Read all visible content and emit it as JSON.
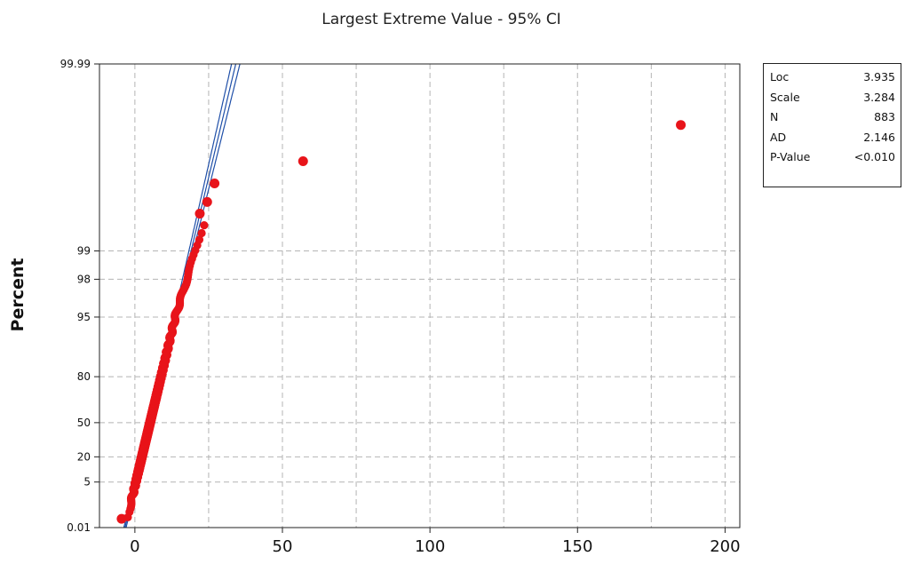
{
  "chart_data": {
    "type": "scatter",
    "title": "Largest Extreme Value - 95% CI",
    "xlabel": "",
    "ylabel": "Percent",
    "xlim": [
      -12,
      205
    ],
    "xticks": [
      0,
      50,
      100,
      150,
      200
    ],
    "xtick_labels": [
      "0",
      "50",
      "100",
      "150",
      "200"
    ],
    "yscale": "largest-extreme-value probability",
    "yticks": [
      0.01,
      5,
      20,
      50,
      80,
      95,
      98,
      99,
      99.99
    ],
    "ytick_labels": [
      "0.01",
      "5",
      "20",
      "50",
      "80",
      "95",
      "98",
      "99",
      "99.99"
    ],
    "grid": true,
    "legend": "none",
    "distribution": {
      "loc": 3.935,
      "scale": 3.284,
      "n": 883
    },
    "points": [
      {
        "x": -4.5,
        "y": 0.06
      },
      {
        "x": 57,
        "y": 99.89
      },
      {
        "x": 185,
        "y": 99.955
      },
      {
        "x": 27,
        "y": 99.81
      },
      {
        "x": 24.5,
        "y": 99.7
      },
      {
        "x": 22,
        "y": 99.6
      }
    ],
    "stats": [
      {
        "label": "Loc",
        "value": "3.935"
      },
      {
        "label": "Scale",
        "value": "3.284"
      },
      {
        "label": "N",
        "value": "883"
      },
      {
        "label": "AD",
        "value": "2.146"
      },
      {
        "label": "P-Value",
        "value": "<0.010"
      }
    ],
    "colors": {
      "points": "#e8141a",
      "fit_line": "#1f4fa8",
      "ci_band": "#1f4fa8",
      "grid": "#b4b4b4"
    }
  }
}
